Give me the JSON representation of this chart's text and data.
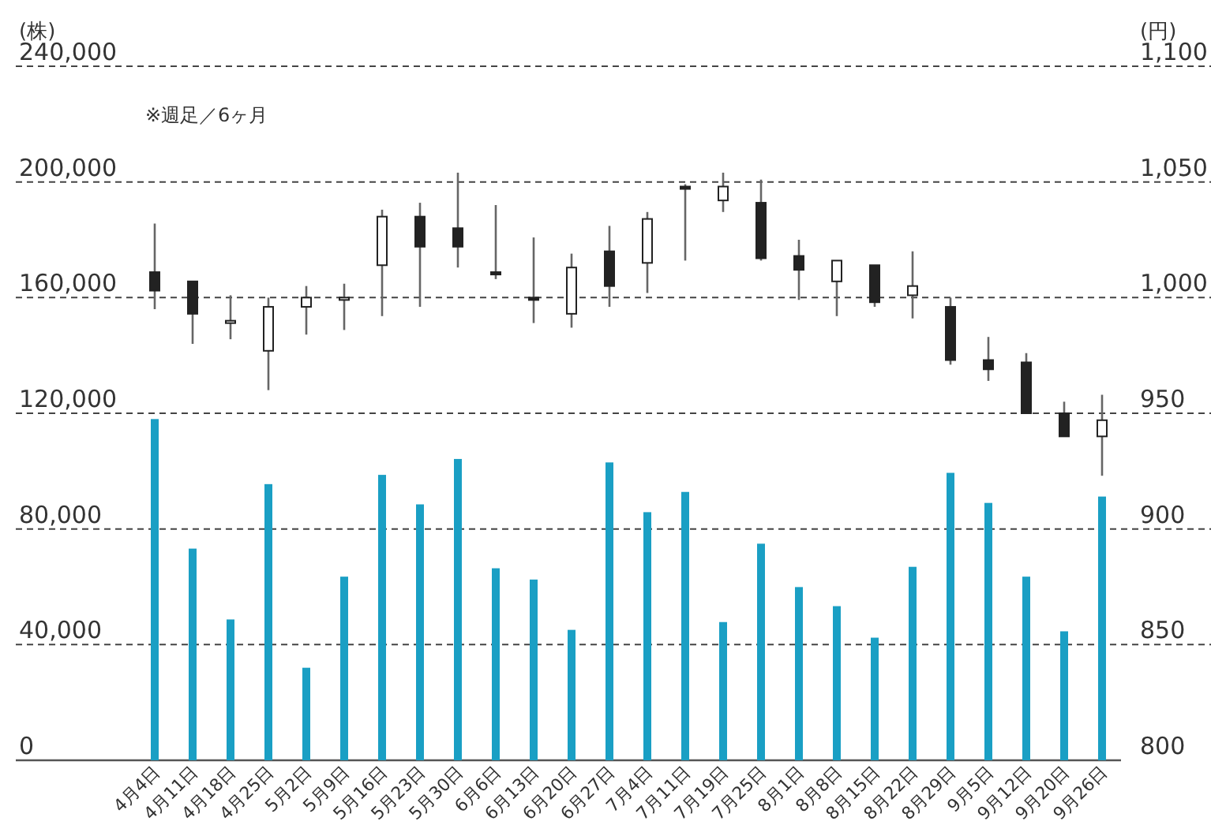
{
  "chart_data": {
    "type": "candlestick",
    "ylabel": "(株)",
    "y2label": "(円)",
    "annotations": [
      "※週足／6ヶ月"
    ],
    "categories": [
      "4月4日",
      "4月11日",
      "4月18日",
      "4月25日",
      "5月2日",
      "5月9日",
      "5月16日",
      "5月23日",
      "5月30日",
      "6月6日",
      "6月13日",
      "6月20日",
      "6月27日",
      "7月4日",
      "7月11日",
      "7月19日",
      "7月25日",
      "8月1日",
      "8月8日",
      "8月15日",
      "8月22日",
      "8月29日",
      "9月5日",
      "9月12日",
      "9月20日",
      "9月26日"
    ],
    "ylim": [
      0,
      240000
    ],
    "yticks": [
      {
        "value": 0,
        "label": "0"
      },
      {
        "value": 40000,
        "label": "40,000"
      },
      {
        "value": 80000,
        "label": "80,000"
      },
      {
        "value": 120000,
        "label": "120,000"
      },
      {
        "value": 160000,
        "label": "160,000"
      },
      {
        "value": 200000,
        "label": "200,000"
      },
      {
        "value": 240000,
        "label": "240,000"
      }
    ],
    "y2lim": [
      800,
      1100
    ],
    "y2ticks": [
      800,
      850,
      900,
      950,
      {
        "value": 1000,
        "label": "1,000"
      },
      {
        "value": 1050,
        "label": "1,050"
      },
      {
        "value": 1100,
        "label": "1,100"
      }
    ],
    "grid": "y",
    "line_style": "dashed",
    "series": [
      {
        "type": "bar",
        "color": "#1a9fc4",
        "values": [
          118000,
          73200,
          48700,
          95500,
          32000,
          63500,
          98700,
          88500,
          104200,
          66400,
          62500,
          45100,
          103000,
          85800,
          92800,
          47800,
          74900,
          59900,
          53300,
          42400,
          66900,
          99400,
          89000,
          63500,
          44600,
          91200
        ]
      },
      {
        "axis": "y2",
        "color": "#222222",
        "ohlc": [
          [
            1011,
            1032,
            995,
            1003
          ],
          [
            1007,
            1007,
            980,
            993
          ],
          [
            989,
            1001,
            982,
            990
          ],
          [
            977,
            1000,
            960,
            996
          ],
          [
            996,
            1005,
            984,
            1000
          ],
          [
            999,
            1006,
            986,
            1000
          ],
          [
            1014,
            1038,
            992,
            1035
          ],
          [
            1035,
            1041,
            996,
            1022
          ],
          [
            1030,
            1054,
            1013,
            1022
          ],
          [
            1011,
            1040,
            1008,
            1010
          ],
          [
            1000,
            1026,
            989,
            999
          ],
          [
            993,
            1019,
            987,
            1013
          ],
          [
            1020,
            1031,
            996,
            1005
          ],
          [
            1015,
            1037,
            1002,
            1034
          ],
          [
            1048,
            1049,
            1016,
            1047
          ],
          [
            1042,
            1054,
            1037,
            1048
          ],
          [
            1041,
            1051,
            1016,
            1017
          ],
          [
            1018,
            1025,
            999,
            1012
          ],
          [
            1007,
            1016,
            992,
            1016
          ],
          [
            1014,
            1014,
            996,
            998
          ],
          [
            1001,
            1020,
            991,
            1005
          ],
          [
            996,
            1000,
            971,
            973
          ],
          [
            973,
            983,
            964,
            969
          ],
          [
            972,
            976,
            950,
            950
          ],
          [
            950,
            955,
            940,
            940
          ],
          [
            940,
            958,
            923,
            947
          ]
        ]
      }
    ]
  }
}
